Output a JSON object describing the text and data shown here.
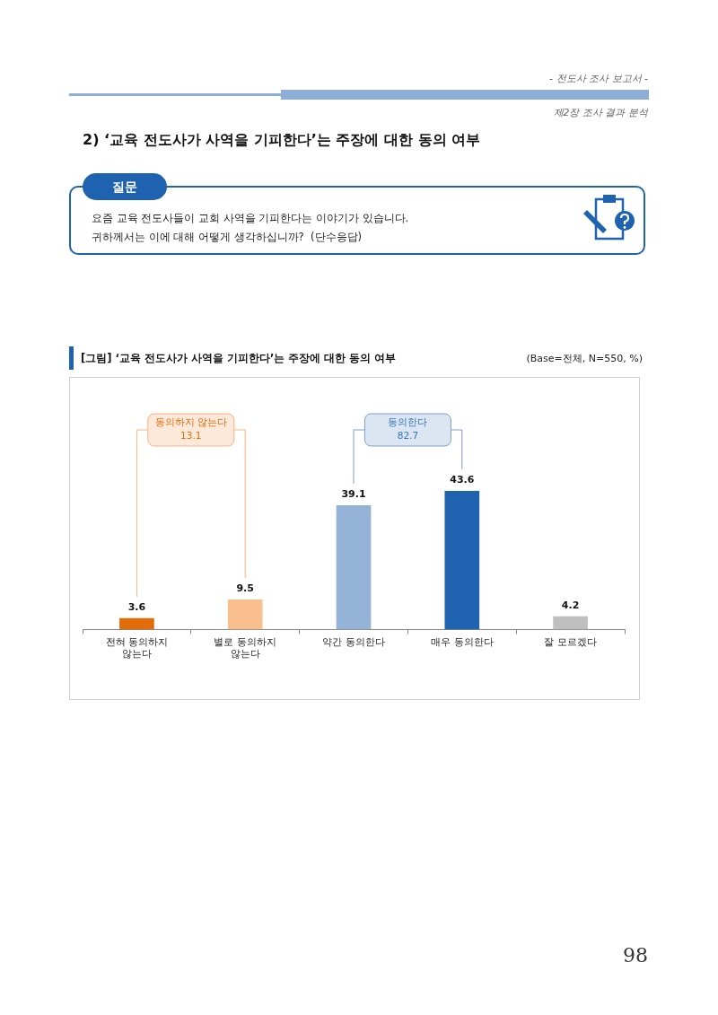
{
  "chart_data": {
    "type": "bar",
    "title": "[그림] ‘교육 전도사가 사역을 기피한다’는 주장에 대한 동의 여부",
    "subtitle": "(Base=전체, N=550, %)",
    "categories": [
      "전혀 동의하지 않는다",
      "별로 동의하지 않는다",
      "약간 동의한다",
      "매우 동의한다",
      "잘 모르겠다"
    ],
    "values": [
      3.6,
      9.5,
      39.1,
      43.6,
      4.2
    ],
    "colors": [
      "#e26b0a",
      "#fabf8f",
      "#95b3d7",
      "#1f62b0",
      "#bfbfbf"
    ],
    "data_labels": true,
    "grid": false,
    "legend": false,
    "annotations": [
      "- 전도사 조사 보고서 -",
      "제2장 조사 결과 분석",
      "2) ‘교육 전도사가 사역을 기피한다’는 주장에 대한 동의 여부",
      "질문",
      "요즘 교육 전도사들이 교회 사역을 기피한다는 이야기가 있습니다.",
      "귀하께서는 이에 대해 어떻게 생각하십니까?  (단수응답)",
      "동의하지 않는다\n13.1",
      "동의한다\n82.7",
      "98"
    ]
  }
}
